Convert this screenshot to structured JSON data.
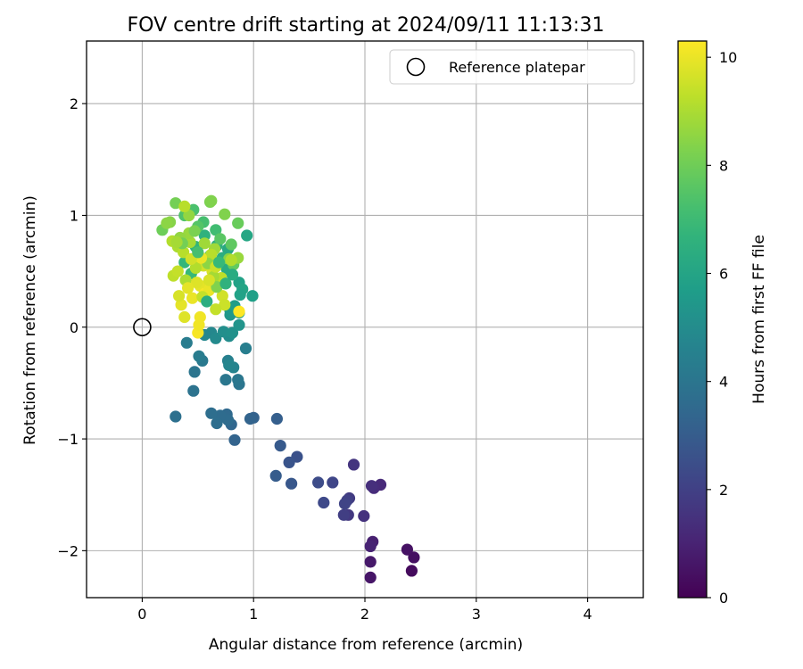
{
  "chart_data": {
    "type": "scatter",
    "title": "FOV centre drift starting at 2024/09/11 11:13:31",
    "xlabel": "Angular distance from reference (arcmin)",
    "ylabel": "Rotation from reference (arcmin)",
    "xlim": [
      -0.5,
      4.5
    ],
    "ylim": [
      -2.42,
      2.56
    ],
    "xticks": [
      0,
      1,
      2,
      3,
      4
    ],
    "xtick_labels": [
      "0",
      "1",
      "2",
      "3",
      "4"
    ],
    "yticks": [
      -2,
      -1,
      0,
      1,
      2
    ],
    "ytick_labels": [
      "−2",
      "−1",
      "0",
      "1",
      "2"
    ],
    "grid": true,
    "legend": {
      "placement": "top-right",
      "entries": [
        {
          "label": "Reference platepar",
          "marker": "open-circle"
        }
      ]
    },
    "colorbar": {
      "label": "Hours from first FF file",
      "colormap": "viridis",
      "range": [
        0,
        10.3
      ],
      "ticks": [
        0,
        2,
        4,
        6,
        8,
        10
      ],
      "tick_labels": [
        "0",
        "2",
        "4",
        "6",
        "8",
        "10"
      ]
    },
    "reference_point": {
      "x": 0,
      "y": 0
    },
    "series": [
      {
        "points": [
          [
            2.42,
            -2.18,
            0.3
          ],
          [
            2.44,
            -2.06,
            0.4
          ],
          [
            2.38,
            -1.99,
            0.5
          ],
          [
            2.05,
            -2.24,
            0.6
          ],
          [
            2.05,
            -2.1,
            0.7
          ],
          [
            2.07,
            -1.92,
            0.9
          ],
          [
            2.05,
            -1.96,
            1.0
          ],
          [
            2.14,
            -1.41,
            1.2
          ],
          [
            2.08,
            -1.44,
            1.3
          ],
          [
            2.06,
            -1.42,
            1.4
          ],
          [
            1.99,
            -1.69,
            1.5
          ],
          [
            1.9,
            -1.23,
            1.6
          ],
          [
            1.85,
            -1.68,
            1.7
          ],
          [
            1.86,
            -1.53,
            1.8
          ],
          [
            1.81,
            -1.68,
            1.9
          ],
          [
            1.84,
            -1.55,
            2.0
          ],
          [
            1.82,
            -1.58,
            2.1
          ],
          [
            1.71,
            -1.39,
            2.2
          ],
          [
            1.63,
            -1.57,
            2.3
          ],
          [
            1.58,
            -1.39,
            2.4
          ],
          [
            1.39,
            -1.16,
            2.6
          ],
          [
            1.32,
            -1.21,
            2.7
          ],
          [
            1.34,
            -1.4,
            2.8
          ],
          [
            1.24,
            -1.06,
            2.9
          ],
          [
            1.2,
            -1.33,
            3.0
          ],
          [
            1.21,
            -0.82,
            3.1
          ],
          [
            1.0,
            -0.81,
            3.2
          ],
          [
            0.97,
            -0.82,
            3.3
          ],
          [
            0.83,
            -1.01,
            3.3
          ],
          [
            0.8,
            -0.87,
            3.4
          ],
          [
            0.76,
            -0.78,
            3.5
          ],
          [
            0.73,
            -0.8,
            3.5
          ],
          [
            0.77,
            -0.83,
            3.6
          ],
          [
            0.7,
            -0.79,
            3.6
          ],
          [
            0.62,
            -0.77,
            3.7
          ],
          [
            0.67,
            -0.86,
            3.7
          ],
          [
            0.3,
            -0.8,
            3.8
          ],
          [
            0.46,
            -0.57,
            3.9
          ],
          [
            0.47,
            -0.4,
            4.0
          ],
          [
            0.87,
            -0.51,
            4.0
          ],
          [
            0.86,
            -0.47,
            4.1
          ],
          [
            0.75,
            -0.47,
            4.1
          ],
          [
            0.54,
            -0.3,
            4.2
          ],
          [
            0.51,
            -0.26,
            4.3
          ],
          [
            0.4,
            -0.14,
            4.3
          ],
          [
            0.93,
            -0.19,
            4.4
          ],
          [
            0.77,
            -0.3,
            4.5
          ],
          [
            0.82,
            -0.36,
            4.6
          ],
          [
            0.78,
            -0.34,
            4.7
          ],
          [
            0.62,
            -0.05,
            4.8
          ],
          [
            0.56,
            -0.07,
            4.8
          ],
          [
            0.66,
            -0.1,
            4.9
          ],
          [
            0.78,
            -0.08,
            5.0
          ],
          [
            0.73,
            -0.04,
            5.1
          ],
          [
            0.81,
            -0.05,
            5.2
          ],
          [
            0.87,
            0.02,
            5.3
          ],
          [
            0.79,
            0.11,
            5.4
          ],
          [
            0.79,
            0.15,
            5.5
          ],
          [
            0.87,
            0.13,
            5.6
          ],
          [
            0.83,
            0.19,
            5.7
          ],
          [
            0.99,
            0.28,
            5.8
          ],
          [
            0.87,
            0.4,
            5.9
          ],
          [
            0.9,
            0.34,
            6.0
          ],
          [
            0.94,
            0.82,
            6.1
          ],
          [
            0.77,
            0.7,
            6.2
          ],
          [
            0.76,
            0.52,
            6.3
          ],
          [
            0.72,
            0.62,
            6.4
          ],
          [
            0.67,
            0.73,
            6.5
          ],
          [
            0.56,
            0.82,
            6.6
          ],
          [
            0.48,
            0.72,
            6.7
          ],
          [
            0.38,
            0.58,
            6.8
          ],
          [
            0.44,
            0.48,
            6.9
          ],
          [
            0.61,
            0.64,
            7.0
          ],
          [
            0.66,
            0.87,
            7.1
          ],
          [
            0.55,
            0.94,
            7.2
          ],
          [
            0.46,
            1.05,
            7.3
          ],
          [
            0.38,
            1.0,
            7.4
          ],
          [
            0.5,
            0.9,
            7.5
          ],
          [
            0.7,
            0.79,
            7.6
          ],
          [
            0.8,
            0.74,
            7.7
          ],
          [
            0.82,
            0.56,
            7.8
          ],
          [
            0.86,
            0.93,
            7.9
          ],
          [
            0.18,
            0.87,
            8.0
          ],
          [
            0.3,
            1.11,
            8.1
          ],
          [
            0.61,
            1.12,
            8.2
          ],
          [
            0.62,
            1.13,
            8.3
          ],
          [
            0.74,
            1.01,
            8.3
          ],
          [
            0.25,
            0.94,
            8.4
          ],
          [
            0.22,
            0.93,
            8.5
          ],
          [
            0.42,
            1.0,
            8.6
          ],
          [
            0.86,
            0.62,
            8.7
          ],
          [
            0.65,
            0.7,
            8.8
          ],
          [
            0.43,
            0.76,
            8.9
          ],
          [
            0.32,
            0.72,
            9.0
          ],
          [
            0.27,
            0.77,
            9.1
          ],
          [
            0.37,
            0.67,
            9.2
          ],
          [
            0.28,
            0.46,
            9.3
          ],
          [
            0.32,
            0.5,
            9.4
          ],
          [
            0.46,
            0.6,
            9.5
          ],
          [
            0.55,
            0.55,
            9.6
          ],
          [
            0.63,
            0.5,
            9.7
          ],
          [
            0.72,
            0.41,
            9.8
          ],
          [
            0.52,
            0.37,
            9.9
          ],
          [
            0.45,
            0.26,
            10.0
          ],
          [
            0.52,
            0.09,
            10.1
          ],
          [
            0.56,
            0.3,
            10.2
          ],
          [
            0.87,
            0.14,
            10.3
          ],
          [
            0.5,
            -0.05,
            10.2
          ],
          [
            0.51,
            0.02,
            10.1
          ],
          [
            0.6,
            0.33,
            10.0
          ],
          [
            0.35,
            0.2,
            9.9
          ],
          [
            0.38,
            0.09,
            9.8
          ],
          [
            0.33,
            0.28,
            9.7
          ],
          [
            0.72,
            0.28,
            9.6
          ],
          [
            0.74,
            0.2,
            9.5
          ],
          [
            0.66,
            0.16,
            9.4
          ],
          [
            0.71,
            0.44,
            9.3
          ],
          [
            0.62,
            0.65,
            9.2
          ],
          [
            0.48,
            0.53,
            9.1
          ],
          [
            0.39,
            0.42,
            9.0
          ],
          [
            0.64,
            0.45,
            8.9
          ],
          [
            0.56,
            0.75,
            8.8
          ],
          [
            0.42,
            0.84,
            8.7
          ],
          [
            0.34,
            0.8,
            8.6
          ],
          [
            0.59,
            0.57,
            8.5
          ],
          [
            0.78,
            0.61,
            8.4
          ],
          [
            0.67,
            0.36,
            8.3
          ],
          [
            0.47,
            0.86,
            8.2
          ],
          [
            0.36,
            0.75,
            8.1
          ],
          [
            0.49,
            0.4,
            9.8
          ],
          [
            0.53,
            0.62,
            10.0
          ],
          [
            0.41,
            0.35,
            9.9
          ],
          [
            0.6,
            0.42,
            9.7
          ],
          [
            0.44,
            0.61,
            9.6
          ],
          [
            0.38,
            1.08,
            9.2
          ],
          [
            0.66,
            0.54,
            9.5
          ],
          [
            0.8,
            0.6,
            9.1
          ],
          [
            0.31,
            0.76,
            8.9
          ],
          [
            0.54,
            0.27,
            9.4
          ],
          [
            0.58,
            0.23,
            6.4
          ],
          [
            0.75,
            0.39,
            6.6
          ],
          [
            0.69,
            0.58,
            6.9
          ],
          [
            0.5,
            0.67,
            7.2
          ],
          [
            0.81,
            0.47,
            6.3
          ],
          [
            0.88,
            0.29,
            5.9
          ]
        ]
      }
    ]
  }
}
